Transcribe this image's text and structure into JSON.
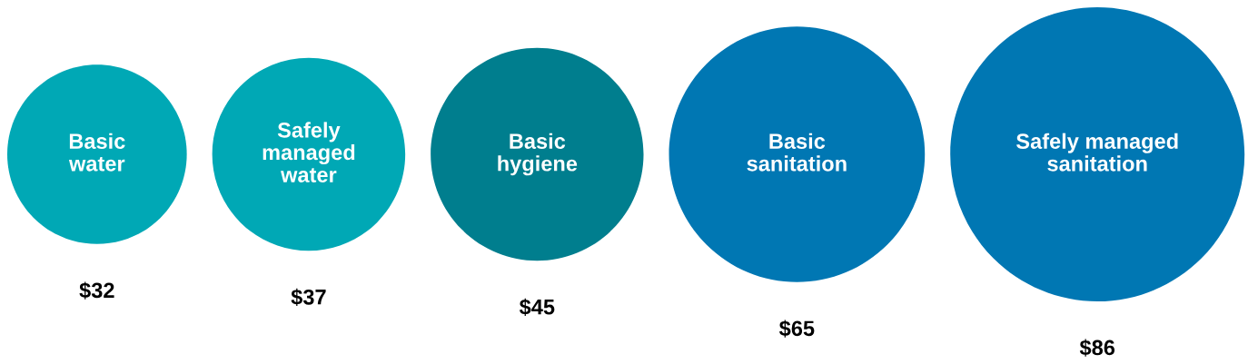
{
  "chart_data": {
    "type": "other",
    "categories": [
      "Basic water",
      "Safely managed water",
      "Basic hygiene",
      "Basic sanitation",
      "Safely managed sanitation"
    ],
    "values": [
      32,
      37,
      45,
      65,
      86
    ],
    "value_labels": [
      "$32",
      "$37",
      "$45",
      "$65",
      "$86"
    ],
    "colors": [
      "#00a8b5",
      "#00a8b5",
      "#007e8e",
      "#0077b3",
      "#0077b3"
    ]
  }
}
